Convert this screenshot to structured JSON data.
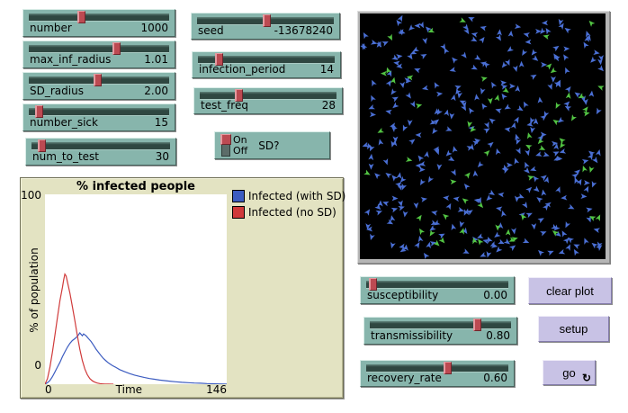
{
  "colors": {
    "widget_teal": "#87b5ac",
    "slider_track": "#2f4741",
    "slider_handle": "#bc4a52",
    "button_lavender": "#c8c2e5",
    "plot_bg": "#e3e3c2",
    "plot_area_bg": "#ffffff",
    "world_bg": "#000000",
    "pen_with_sd": "#3c5cc0",
    "pen_no_sd": "#d03a3a"
  },
  "sliders": {
    "number": {
      "label": "number",
      "value": "1000",
      "fraction": 0.37
    },
    "max_inf_radius": {
      "label": "max_inf_radius",
      "value": "1.01",
      "fraction": 0.63
    },
    "sd_radius": {
      "label": "SD_radius",
      "value": "2.00",
      "fraction": 0.49
    },
    "number_sick": {
      "label": "number_sick",
      "value": "15",
      "fraction": 0.05
    },
    "num_to_test": {
      "label": "num_to_test",
      "value": "30",
      "fraction": 0.05
    },
    "seed": {
      "label": "seed",
      "value": "-13678240",
      "fraction": 0.51
    },
    "infection_period": {
      "label": "infection_period",
      "value": "14",
      "fraction": 0.13
    },
    "test_freq": {
      "label": "test_freq",
      "value": "28",
      "fraction": 0.27
    },
    "susceptibility": {
      "label": "susceptibility",
      "value": "0.00",
      "fraction": 0.02
    },
    "transmissibility": {
      "label": "transmissibility",
      "value": "0.80",
      "fraction": 0.78
    },
    "recovery_rate": {
      "label": "recovery_rate",
      "value": "0.60",
      "fraction": 0.58
    }
  },
  "switch": {
    "label": "SD?",
    "on_label": "On",
    "off_label": "Off",
    "state": "On"
  },
  "buttons": {
    "clear_plot": "clear plot",
    "setup": "setup",
    "go": "go",
    "forever_icon": "↻"
  },
  "world": {
    "background": "#000000",
    "turtles": [
      {
        "name": "blue-turtles",
        "color": "#4a6fd4",
        "count": 340
      },
      {
        "name": "green-turtles",
        "color": "#52c443",
        "count": 60
      }
    ]
  },
  "chart_data": {
    "type": "line",
    "title": "% infected people",
    "xlabel": "Time",
    "ylabel": "% of population",
    "xlim": [
      0,
      146
    ],
    "ylim": [
      0,
      100
    ],
    "x_tick_labels": [
      "0",
      "146"
    ],
    "y_tick_labels": [
      "0",
      "100"
    ],
    "grid": false,
    "legend_position": "top-right",
    "series": [
      {
        "name": "Infected (with SD)",
        "color": "#3c5cc0",
        "points": [
          [
            0,
            0
          ],
          [
            2,
            0.8
          ],
          [
            4,
            2
          ],
          [
            6,
            4
          ],
          [
            8,
            6.5
          ],
          [
            10,
            9
          ],
          [
            12,
            11.5
          ],
          [
            14,
            14.5
          ],
          [
            16,
            17
          ],
          [
            18,
            19.5
          ],
          [
            20,
            21.5
          ],
          [
            22,
            23
          ],
          [
            24,
            24
          ],
          [
            26,
            25.2
          ],
          [
            28,
            27
          ],
          [
            30,
            25.5
          ],
          [
            31,
            26.5
          ],
          [
            33,
            25.5
          ],
          [
            35,
            24
          ],
          [
            37,
            22.5
          ],
          [
            39,
            20.5
          ],
          [
            41,
            18.5
          ],
          [
            43,
            16.8
          ],
          [
            45,
            15
          ],
          [
            47,
            13.5
          ],
          [
            49,
            12.3
          ],
          [
            51,
            11.2
          ],
          [
            54,
            9.9
          ],
          [
            57,
            8.8
          ],
          [
            60,
            7.7
          ],
          [
            64,
            6.6
          ],
          [
            68,
            5.6
          ],
          [
            72,
            4.8
          ],
          [
            76,
            4.1
          ],
          [
            80,
            3.5
          ],
          [
            84,
            3
          ],
          [
            88,
            2.6
          ],
          [
            92,
            2.2
          ],
          [
            96,
            1.9
          ],
          [
            100,
            1.6
          ],
          [
            105,
            1.3
          ],
          [
            110,
            1
          ],
          [
            115,
            0.8
          ],
          [
            120,
            0.6
          ],
          [
            125,
            0.5
          ],
          [
            130,
            0.35
          ],
          [
            135,
            0.25
          ],
          [
            140,
            0.15
          ],
          [
            146,
            0.1
          ]
        ]
      },
      {
        "name": "Infected (no SD)",
        "color": "#d03a3a",
        "points": [
          [
            0,
            0
          ],
          [
            2,
            3
          ],
          [
            4,
            9
          ],
          [
            6,
            17
          ],
          [
            8,
            26
          ],
          [
            10,
            35
          ],
          [
            12,
            44
          ],
          [
            14,
            51
          ],
          [
            15,
            55
          ],
          [
            16,
            58
          ],
          [
            17,
            57
          ],
          [
            18,
            54
          ],
          [
            20,
            48
          ],
          [
            22,
            41
          ],
          [
            24,
            33.5
          ],
          [
            26,
            25.5
          ],
          [
            28,
            18.5
          ],
          [
            30,
            12.5
          ],
          [
            32,
            8
          ],
          [
            34,
            5
          ],
          [
            36,
            3
          ],
          [
            38,
            1.8
          ],
          [
            40,
            1.1
          ],
          [
            42,
            0.6
          ],
          [
            44,
            0.35
          ],
          [
            46,
            0.2
          ],
          [
            48,
            0.1
          ],
          [
            51,
            0.05
          ],
          [
            55,
            0
          ]
        ]
      }
    ]
  }
}
